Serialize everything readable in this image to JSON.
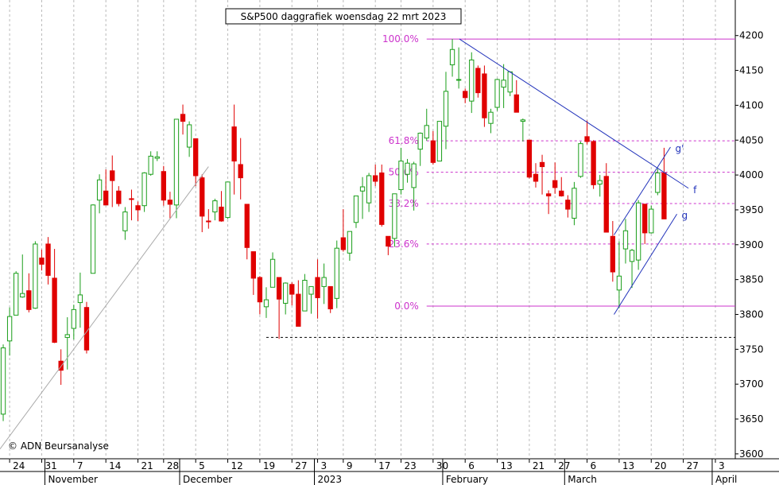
{
  "chart_data": {
    "type": "candlestick",
    "title": "S&P500 daggrafiek woensdag 22 mrt 2023",
    "copyright": "© ADN Beursanalyse",
    "open": [
      3657,
      3762,
      3799,
      3825,
      3834,
      3809,
      3881,
      3901,
      3852,
      3733,
      3767,
      3780,
      3817,
      3810,
      3859,
      3964,
      3977,
      4006,
      3977,
      3920,
      3966,
      3956,
      3956,
      4001,
      4024,
      4005,
      3964,
      3957,
      4087,
      4040,
      4052,
      3996,
      3934,
      3947,
      3954,
      3939,
      4069,
      4015,
      3958,
      3890,
      3853,
      3811,
      3839,
      3853,
      3816,
      3843,
      3829,
      3805,
      3829,
      3853,
      3840,
      3840,
      3823,
      3910,
      3888,
      3932,
      3977,
      3960,
      3999,
      4003,
      3912,
      3909,
      3979,
      4001,
      3982,
      4037,
      4053,
      4049,
      4020,
      4070,
      4158,
      4136,
      4120,
      4106,
      4153,
      4145,
      4074,
      4097,
      4126,
      4119,
      4115,
      4077,
      4050,
      4001,
      4018,
      3973,
      3992,
      3977,
      3964,
      3938,
      3998,
      4055,
      4048,
      3987,
      3998,
      3912,
      3835,
      3894,
      3876,
      3878,
      3958,
      3917,
      3975,
      4003
    ],
    "high": [
      3757,
      3810,
      3862,
      3886,
      3859,
      3905,
      3893,
      3911,
      3894,
      3750,
      3796,
      3814,
      3860,
      3818,
      3958,
      4001,
      4008,
      4028,
      3984,
      3954,
      3979,
      3962,
      4004,
      4034,
      4034,
      4013,
      3976,
      4080,
      4101,
      4077,
      4052,
      4001,
      3951,
      3966,
      3977,
      3990,
      4101,
      4053,
      3958,
      3890,
      3855,
      3839,
      3889,
      3853,
      3846,
      3846,
      3849,
      3858,
      3840,
      3879,
      3873,
      3840,
      3906,
      3951,
      3919,
      3970,
      3997,
      4003,
      4015,
      4015,
      3912,
      3973,
      4039,
      4023,
      4019,
      4061,
      4095,
      4063,
      4077,
      4148,
      4195,
      4183,
      4124,
      4176,
      4157,
      4157,
      4095,
      4138,
      4159,
      4148,
      4136,
      4081,
      4050,
      4017,
      4029,
      3978,
      4018,
      3997,
      3971,
      3990,
      4048,
      4078,
      4050,
      4000,
      4017,
      3934,
      3905,
      3937,
      3894,
      3964,
      3959,
      3956,
      4009,
      4039
    ],
    "low": [
      3647,
      3741,
      3799,
      3824,
      3803,
      3808,
      3863,
      3843,
      3759,
      3699,
      3721,
      3764,
      3781,
      3744,
      3859,
      3945,
      3957,
      3954,
      3955,
      3907,
      3935,
      3934,
      3947,
      3999,
      4020,
      3956,
      3938,
      3938,
      4058,
      4026,
      3984,
      3918,
      3923,
      3935,
      3933,
      3937,
      3972,
      3965,
      3879,
      3828,
      3800,
      3795,
      3839,
      3765,
      3800,
      3813,
      3783,
      3805,
      3801,
      3794,
      3815,
      3802,
      3809,
      3890,
      3877,
      3924,
      3937,
      3947,
      3984,
      3926,
      3885,
      3897,
      3972,
      3989,
      3949,
      4013,
      4049,
      4015,
      4020,
      4037,
      4141,
      4124,
      4103,
      4089,
      4111,
      4069,
      4060,
      4092,
      4096,
      4113,
      4091,
      4048,
      3995,
      3982,
      3972,
      3944,
      3973,
      3969,
      3939,
      3928,
      3996,
      4044,
      3980,
      3969,
      3919,
      3847,
      3809,
      3873,
      3838,
      3864,
      3901,
      3916,
      3971,
      3937
    ],
    "close": [
      3752,
      3797,
      3859,
      3830,
      3807,
      3901,
      3872,
      3856,
      3760,
      3720,
      3771,
      3807,
      3828,
      3749,
      3957,
      3993,
      3957,
      3992,
      3959,
      3947,
      3965,
      3950,
      4003,
      4027,
      4026,
      3964,
      3958,
      4080,
      4077,
      4072,
      3999,
      3941,
      3933,
      3963,
      3934,
      3990,
      4020,
      3996,
      3896,
      3852,
      3818,
      3821,
      3879,
      3822,
      3845,
      3829,
      3783,
      3849,
      3840,
      3824,
      3853,
      3808,
      3895,
      3893,
      3919,
      3970,
      3983,
      3999,
      3991,
      3929,
      3898,
      3973,
      4020,
      4017,
      4016,
      4060,
      4071,
      4018,
      4077,
      4120,
      4180,
      4137,
      4111,
      4165,
      4118,
      4082,
      4090,
      4137,
      4136,
      4148,
      4090,
      4079,
      3997,
      3991,
      4012,
      3970,
      3982,
      3970,
      3951,
      3981,
      4045,
      4048,
      3986,
      3992,
      3918,
      3861,
      3855,
      3920,
      3892,
      3960,
      3917,
      3951,
      4003,
      3937
    ],
    "up_color": "#1a9e1a",
    "down_color": "#e00000",
    "xlim": [
      -0.5,
      114.1
    ],
    "xticks": [
      {
        "value": 1,
        "label": "24"
      },
      {
        "value": 6,
        "label": "31"
      },
      {
        "value": 11,
        "label": "7"
      },
      {
        "value": 16,
        "label": "14"
      },
      {
        "value": 21,
        "label": "21"
      },
      {
        "value": 25,
        "label": "28"
      },
      {
        "value": 30,
        "label": "5"
      },
      {
        "value": 35,
        "label": "12"
      },
      {
        "value": 40,
        "label": "19"
      },
      {
        "value": 45,
        "label": "27"
      },
      {
        "value": 49,
        "label": "3"
      },
      {
        "value": 53,
        "label": "9"
      },
      {
        "value": 58,
        "label": "17"
      },
      {
        "value": 62,
        "label": "23"
      },
      {
        "value": 67,
        "label": "30"
      },
      {
        "value": 72,
        "label": "6"
      },
      {
        "value": 77,
        "label": "13"
      },
      {
        "value": 82,
        "label": "21"
      },
      {
        "value": 86,
        "label": "27"
      },
      {
        "value": 91,
        "label": "6"
      },
      {
        "value": 96,
        "label": "13"
      },
      {
        "value": 101,
        "label": "20"
      },
      {
        "value": 106,
        "label": "27"
      },
      {
        "value": 111,
        "label": "3"
      }
    ],
    "month_ticks": [
      {
        "value": 7,
        "label": "November"
      },
      {
        "value": 28,
        "label": "December"
      },
      {
        "value": 49,
        "label": "2023"
      },
      {
        "value": 69,
        "label": "February"
      },
      {
        "value": 88,
        "label": "March"
      },
      {
        "value": 111,
        "label": "April"
      }
    ],
    "ylim": [
      3593,
      4251
    ],
    "yticks": [
      3600,
      3650,
      3700,
      3750,
      3800,
      3850,
      3900,
      3950,
      4000,
      4050,
      4100,
      4150,
      4200
    ],
    "fibonacci": [
      {
        "label": "100.0%",
        "value": 4195
      },
      {
        "label": "61.8%",
        "value": 4049
      },
      {
        "label": "50.0%",
        "value": 4004
      },
      {
        "label": "38.2%",
        "value": 3959
      },
      {
        "label": "23.6%",
        "value": 3901
      },
      {
        "label": "0.0%",
        "value": 3812
      }
    ],
    "fib_color": "#cc33cc",
    "fib_start": 66,
    "support": {
      "value": 3767,
      "start": 41
    },
    "trendlines": [
      {
        "label": "f",
        "color": "#2233bb",
        "points": [
          [
            71.1,
            4195
          ],
          [
            106.8,
            3981
          ]
        ]
      },
      {
        "label": "g",
        "color": "#2233bb",
        "points": [
          [
            95.2,
            3800
          ],
          [
            105,
            3944
          ]
        ]
      },
      {
        "label": "g'",
        "color": "#2233bb",
        "points": [
          [
            95.2,
            3914
          ],
          [
            104,
            4040
          ]
        ]
      },
      {
        "color": "#aaaaaa",
        "points": [
          [
            -0.5,
            3607
          ],
          [
            32,
            4012
          ]
        ]
      }
    ]
  }
}
